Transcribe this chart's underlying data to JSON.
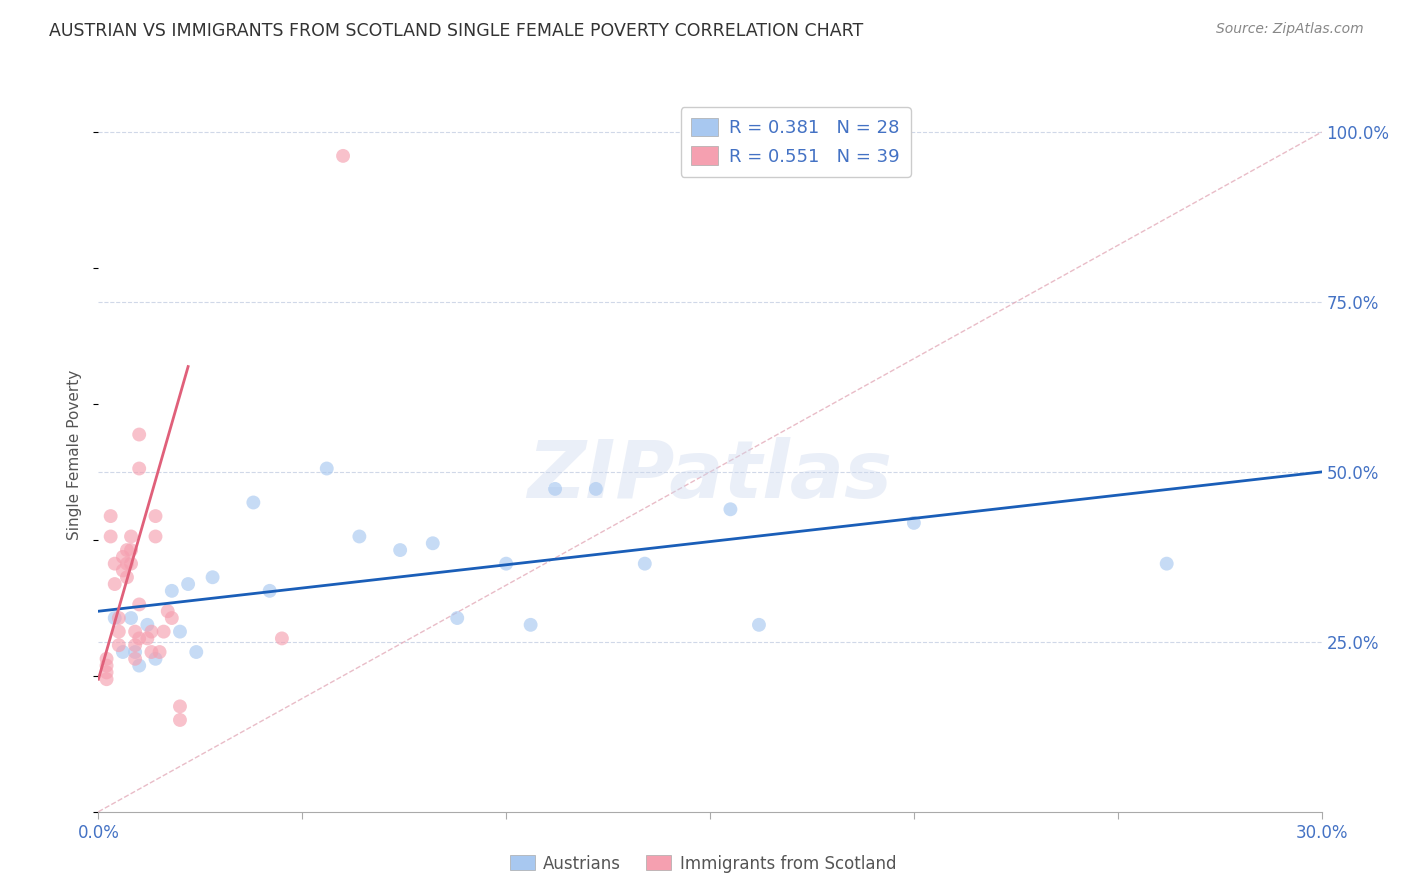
{
  "title": "AUSTRIAN VS IMMIGRANTS FROM SCOTLAND SINGLE FEMALE POVERTY CORRELATION CHART",
  "source": "Source: ZipAtlas.com",
  "ylabel": "Single Female Poverty",
  "xlim": [
    0.0,
    0.3
  ],
  "ylim": [
    0.0,
    1.05
  ],
  "xticks": [
    0.0,
    0.05,
    0.1,
    0.15,
    0.2,
    0.25,
    0.3
  ],
  "xticklabels": [
    "0.0%",
    "",
    "",
    "",
    "",
    "",
    "30.0%"
  ],
  "yticks_right": [
    0.25,
    0.5,
    0.75,
    1.0
  ],
  "ytick_right_labels": [
    "25.0%",
    "50.0%",
    "75.0%",
    "100.0%"
  ],
  "legend_R1": "R = 0.381",
  "legend_N1": "N = 28",
  "legend_R2": "R = 0.551",
  "legend_N2": "N = 39",
  "austrians_color": "#a8c8f0",
  "scotland_color": "#f5a0b0",
  "trend_blue_color": "#1a5eb8",
  "trend_pink_color": "#e0607a",
  "ref_line_color": "#e0a0b0",
  "background_color": "#ffffff",
  "title_color": "#333333",
  "source_color": "#888888",
  "tick_color": "#4472c4",
  "legend_color": "#4472c4",
  "watermark": "ZIPatlas",
  "austrians_x": [
    0.004,
    0.006,
    0.008,
    0.009,
    0.01,
    0.012,
    0.014,
    0.018,
    0.02,
    0.022,
    0.024,
    0.028,
    0.038,
    0.042,
    0.056,
    0.064,
    0.074,
    0.082,
    0.088,
    0.1,
    0.106,
    0.112,
    0.122,
    0.134,
    0.155,
    0.162,
    0.2,
    0.262
  ],
  "austrians_y": [
    0.285,
    0.235,
    0.285,
    0.235,
    0.215,
    0.275,
    0.225,
    0.325,
    0.265,
    0.335,
    0.235,
    0.345,
    0.455,
    0.325,
    0.505,
    0.405,
    0.385,
    0.395,
    0.285,
    0.365,
    0.275,
    0.475,
    0.475,
    0.365,
    0.445,
    0.275,
    0.425,
    0.365
  ],
  "scotland_x": [
    0.002,
    0.002,
    0.002,
    0.002,
    0.003,
    0.003,
    0.004,
    0.004,
    0.005,
    0.005,
    0.005,
    0.006,
    0.006,
    0.007,
    0.007,
    0.007,
    0.008,
    0.008,
    0.008,
    0.009,
    0.009,
    0.009,
    0.01,
    0.01,
    0.01,
    0.01,
    0.012,
    0.013,
    0.013,
    0.014,
    0.014,
    0.015,
    0.016,
    0.017,
    0.018,
    0.02,
    0.02,
    0.045,
    0.06
  ],
  "scotland_y": [
    0.225,
    0.215,
    0.205,
    0.195,
    0.435,
    0.405,
    0.365,
    0.335,
    0.285,
    0.265,
    0.245,
    0.375,
    0.355,
    0.385,
    0.365,
    0.345,
    0.405,
    0.385,
    0.365,
    0.265,
    0.245,
    0.225,
    0.555,
    0.505,
    0.305,
    0.255,
    0.255,
    0.265,
    0.235,
    0.435,
    0.405,
    0.235,
    0.265,
    0.295,
    0.285,
    0.155,
    0.135,
    0.255,
    0.965
  ],
  "blue_trend_x": [
    0.0,
    0.3
  ],
  "blue_trend_y": [
    0.295,
    0.5
  ],
  "pink_trend_x": [
    0.0,
    0.022
  ],
  "pink_trend_y": [
    0.195,
    0.655
  ],
  "ref_line_x": [
    0.0,
    0.3
  ],
  "ref_line_y": [
    0.0,
    1.0
  ],
  "dot_size": 100,
  "dot_alpha": 0.65,
  "trend_lw": 2.0
}
